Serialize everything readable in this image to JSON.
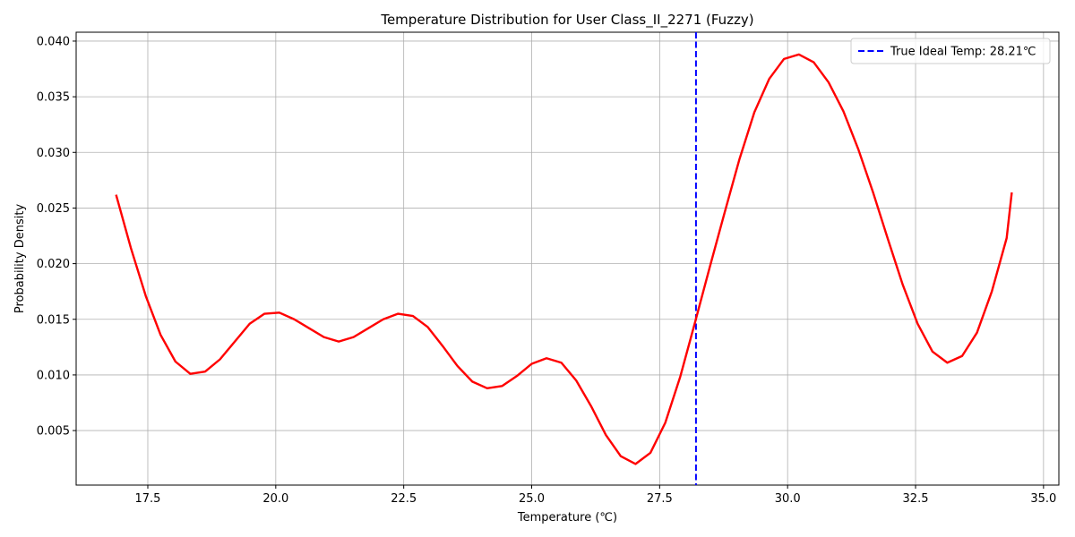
{
  "chart_data": {
    "type": "line",
    "title": "Temperature Distribution for User Class_II_2271 (Fuzzy)",
    "xlabel": "Temperature (℃)",
    "ylabel": "Probability Density",
    "xlim": [
      16.1,
      35.3
    ],
    "ylim": [
      0.0001,
      0.0408
    ],
    "xticks": [
      17.5,
      20.0,
      22.5,
      25.0,
      27.5,
      30.0,
      32.5,
      35.0
    ],
    "xtick_labels": [
      "17.5",
      "20.0",
      "22.5",
      "25.0",
      "27.5",
      "30.0",
      "32.5",
      "35.0"
    ],
    "yticks": [
      0.005,
      0.01,
      0.015,
      0.02,
      0.025,
      0.03,
      0.035,
      0.04
    ],
    "ytick_labels": [
      "0.005",
      "0.010",
      "0.015",
      "0.020",
      "0.025",
      "0.030",
      "0.035",
      "0.040"
    ],
    "grid": true,
    "legend_position": "top-right",
    "series": [
      {
        "name": "",
        "color": "#ff0000",
        "x": [
          16.88,
          17.17,
          17.46,
          17.75,
          18.04,
          18.33,
          18.62,
          18.91,
          19.2,
          19.49,
          19.78,
          20.07,
          20.36,
          20.65,
          20.94,
          21.23,
          21.52,
          21.81,
          22.1,
          22.39,
          22.68,
          22.97,
          23.26,
          23.55,
          23.84,
          24.13,
          24.42,
          24.71,
          25.0,
          25.29,
          25.58,
          25.87,
          26.16,
          26.45,
          26.74,
          27.03,
          27.32,
          27.61,
          27.9,
          28.19,
          28.48,
          28.77,
          29.06,
          29.35,
          29.64,
          29.93,
          30.22,
          30.51,
          30.8,
          31.09,
          31.38,
          31.67,
          31.96,
          32.25,
          32.54,
          32.83,
          33.12,
          33.41,
          33.7,
          33.99,
          34.28,
          34.38
        ],
        "y": [
          0.0262,
          0.0214,
          0.0171,
          0.0136,
          0.0112,
          0.0101,
          0.0103,
          0.0114,
          0.013,
          0.0146,
          0.0155,
          0.0156,
          0.015,
          0.0142,
          0.0134,
          0.013,
          0.0134,
          0.0142,
          0.015,
          0.0155,
          0.0153,
          0.0143,
          0.0126,
          0.0108,
          0.0094,
          0.0088,
          0.009,
          0.0099,
          0.011,
          0.0115,
          0.0111,
          0.0095,
          0.0072,
          0.0046,
          0.0027,
          0.002,
          0.003,
          0.0057,
          0.0098,
          0.0147,
          0.0197,
          0.0246,
          0.0294,
          0.0336,
          0.0366,
          0.0384,
          0.0388,
          0.0381,
          0.0363,
          0.0337,
          0.0303,
          0.0264,
          0.0222,
          0.0181,
          0.0146,
          0.0121,
          0.0111,
          0.0117,
          0.0138,
          0.0175,
          0.0223,
          0.0264
        ]
      }
    ],
    "reference_line": {
      "x": 28.21,
      "color": "#0000ff",
      "label": "True Ideal Temp: 28.21℃"
    }
  }
}
